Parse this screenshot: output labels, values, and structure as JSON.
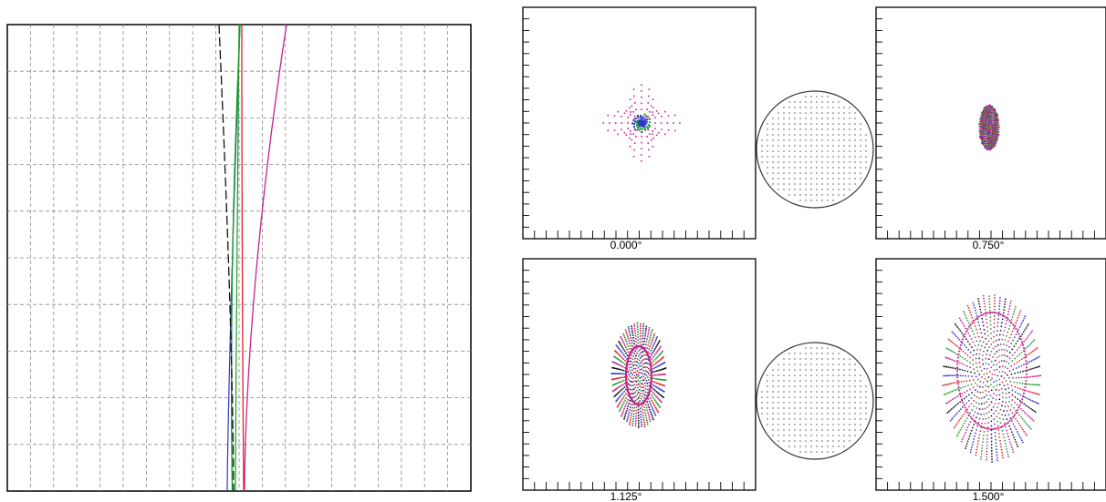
{
  "spot_diagrams": {
    "fields": [
      {
        "id": "f0",
        "label": "0.000°"
      },
      {
        "id": "f1",
        "label": "0.750°"
      },
      {
        "id": "f2",
        "label": "1.125°"
      },
      {
        "id": "f3",
        "label": "1.500°"
      }
    ]
  },
  "colors": {
    "blue": "#2f37c8",
    "green": "#1d9a2e",
    "magenta": "#c8208f",
    "red": "#e2212a",
    "black": "#111111",
    "grid": "#8a8a8a"
  }
}
